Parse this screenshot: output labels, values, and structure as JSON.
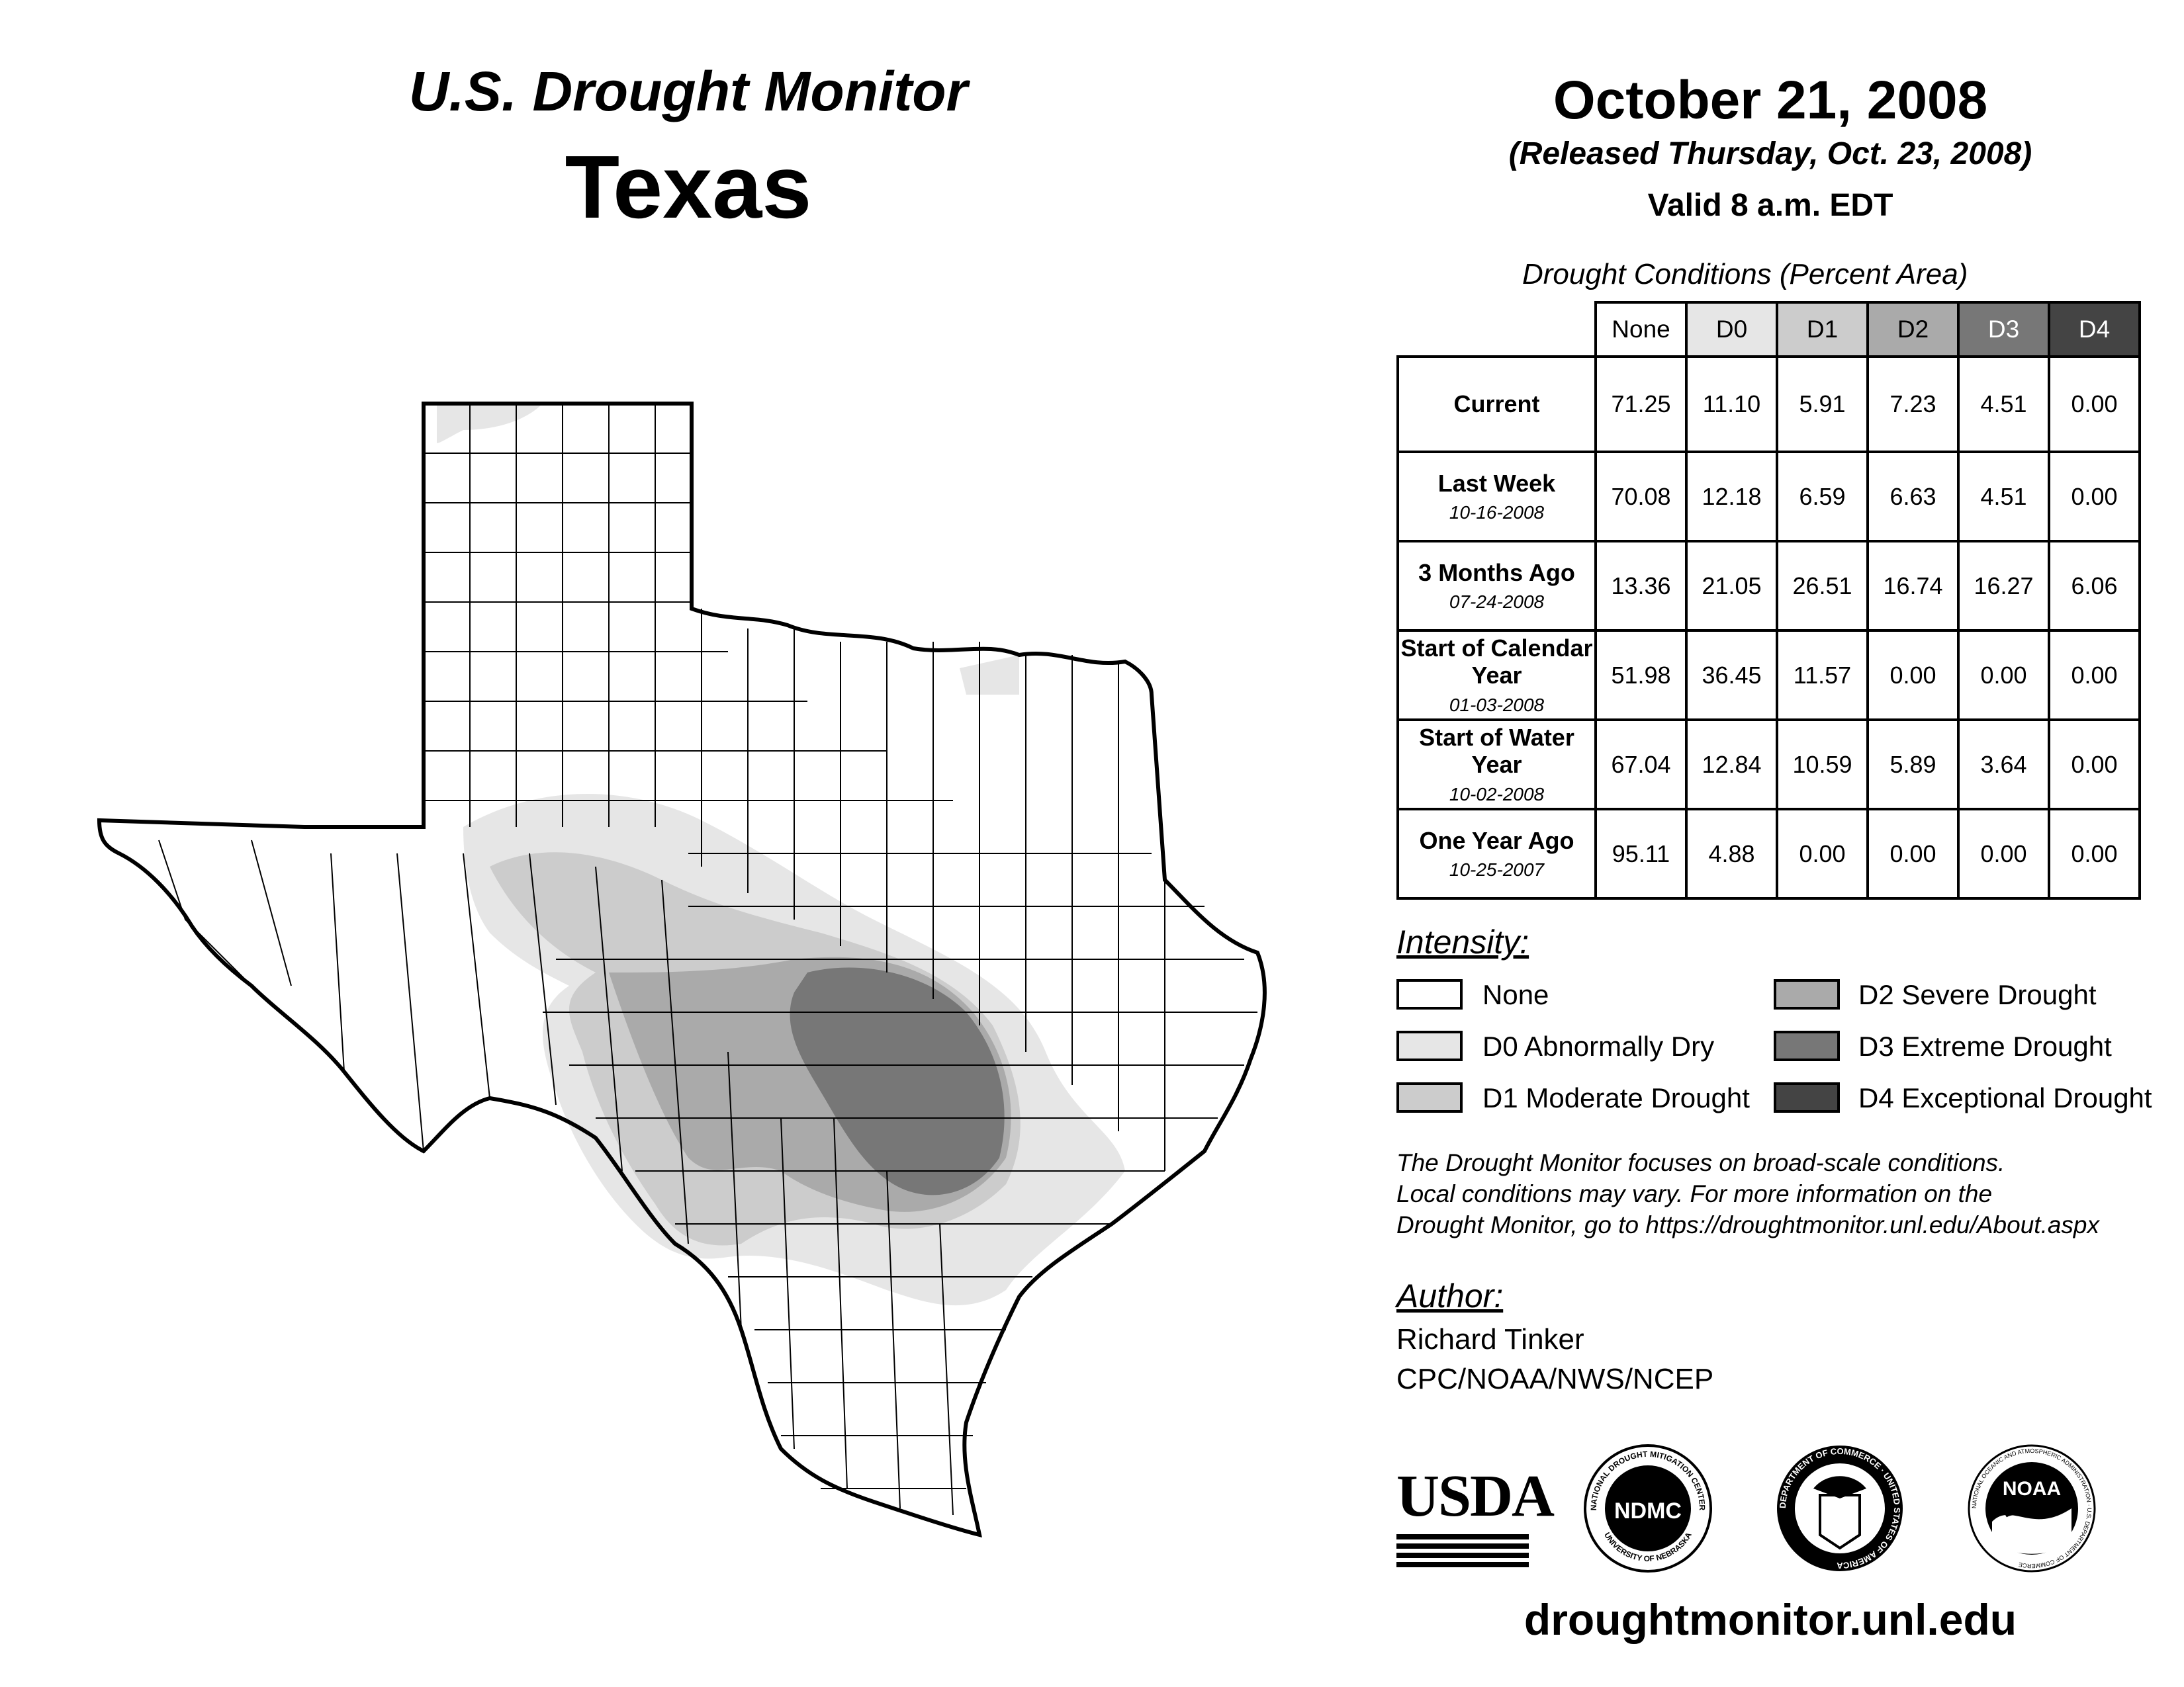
{
  "header": {
    "title_line1": "U.S. Drought Monitor",
    "title_line2": "Texas",
    "date": "October 21, 2008",
    "released": "(Released Thursday, Oct. 23, 2008)",
    "valid": "Valid 8 a.m. EDT"
  },
  "table": {
    "caption": "Drought Conditions (Percent Area)",
    "columns": [
      "None",
      "D0",
      "D1",
      "D2",
      "D3",
      "D4"
    ],
    "column_colors": [
      "#ffffff",
      "#e6e6e6",
      "#cccccc",
      "#aaaaaa",
      "#777777",
      "#444444"
    ],
    "rows": [
      {
        "label": "Current",
        "date": "",
        "values": [
          "71.25",
          "11.10",
          "5.91",
          "7.23",
          "4.51",
          "0.00"
        ]
      },
      {
        "label": "Last Week",
        "date": "10-16-2008",
        "values": [
          "70.08",
          "12.18",
          "6.59",
          "6.63",
          "4.51",
          "0.00"
        ]
      },
      {
        "label": "3 Months Ago",
        "date": "07-24-2008",
        "values": [
          "13.36",
          "21.05",
          "26.51",
          "16.74",
          "16.27",
          "6.06"
        ]
      },
      {
        "label": "Start of Calendar Year",
        "date": "01-03-2008",
        "values": [
          "51.98",
          "36.45",
          "11.57",
          "0.00",
          "0.00",
          "0.00"
        ]
      },
      {
        "label": "Start of Water Year",
        "date": "10-02-2008",
        "values": [
          "67.04",
          "12.84",
          "10.59",
          "5.89",
          "3.64",
          "0.00"
        ]
      },
      {
        "label": "One Year Ago",
        "date": "10-25-2007",
        "values": [
          "95.11",
          "4.88",
          "0.00",
          "0.00",
          "0.00",
          "0.00"
        ]
      }
    ]
  },
  "legend": {
    "title": "Intensity:",
    "items": [
      {
        "label": "None",
        "color": "#ffffff"
      },
      {
        "label": "D0 Abnormally Dry",
        "color": "#e6e6e6"
      },
      {
        "label": "D1 Moderate Drought",
        "color": "#cccccc"
      },
      {
        "label": "D2 Severe Drought",
        "color": "#aaaaaa"
      },
      {
        "label": "D3 Extreme Drought",
        "color": "#777777"
      },
      {
        "label": "D4 Exceptional Drought",
        "color": "#444444"
      }
    ]
  },
  "note": {
    "line1": "The Drought Monitor focuses on broad-scale conditions.",
    "line2": "Local conditions may vary. For more information on the",
    "line3": "Drought Monitor, go to https://droughtmonitor.unl.edu/About.aspx"
  },
  "author": {
    "title": "Author:",
    "name": "Richard Tinker",
    "org": "CPC/NOAA/NWS/NCEP"
  },
  "logos": {
    "usda": "USDA",
    "ndmc": "NDMC",
    "ndmc_ring_top": "NATIONAL DROUGHT MITIGATION CENTER",
    "ndmc_ring_bottom": "UNIVERSITY OF NEBRASKA",
    "doc_ring": "DEPARTMENT OF COMMERCE · UNITED STATES OF AMERICA",
    "noaa": "NOAA",
    "noaa_ring": "NATIONAL OCEANIC AND ATMOSPHERIC ADMINISTRATION · U.S. DEPARTMENT OF COMMERCE"
  },
  "url": "droughtmonitor.unl.edu"
}
